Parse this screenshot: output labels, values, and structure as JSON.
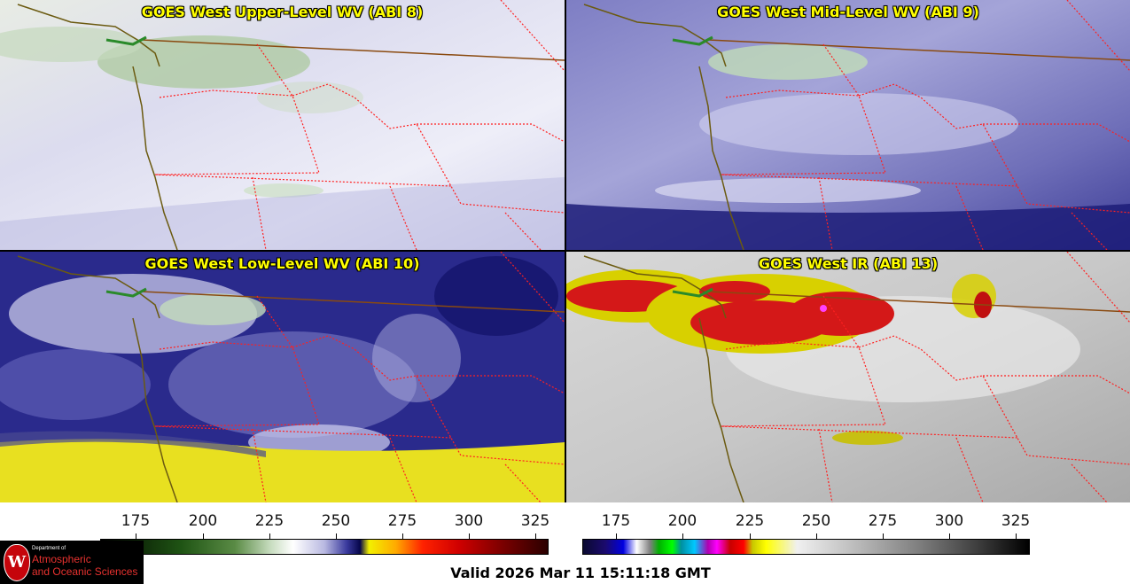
{
  "panels": [
    {
      "title": "GOES West Upper-Level WV (ABI 8)"
    },
    {
      "title": "GOES West Mid-Level WV (ABI 9)"
    },
    {
      "title": "GOES West Low-Level WV (ABI 10)"
    },
    {
      "title": "GOES West IR (ABI 13)"
    }
  ],
  "colorbar_wv": {
    "ticks": [
      "175",
      "200",
      "225",
      "250",
      "275",
      "300",
      "325"
    ]
  },
  "colorbar_ir": {
    "ticks": [
      "175",
      "200",
      "225",
      "250",
      "275",
      "300",
      "325"
    ]
  },
  "logo": {
    "dept": "Department of",
    "line1": "Atmospheric",
    "line2": "and Oceanic Sciences",
    "seal_letter": "W"
  },
  "valid_text": "Valid 2026 Mar 11 15:11:18 GMT",
  "colors": {
    "title": "#ffff00",
    "borders": "#ff0000",
    "coast": "#6b5a10"
  }
}
